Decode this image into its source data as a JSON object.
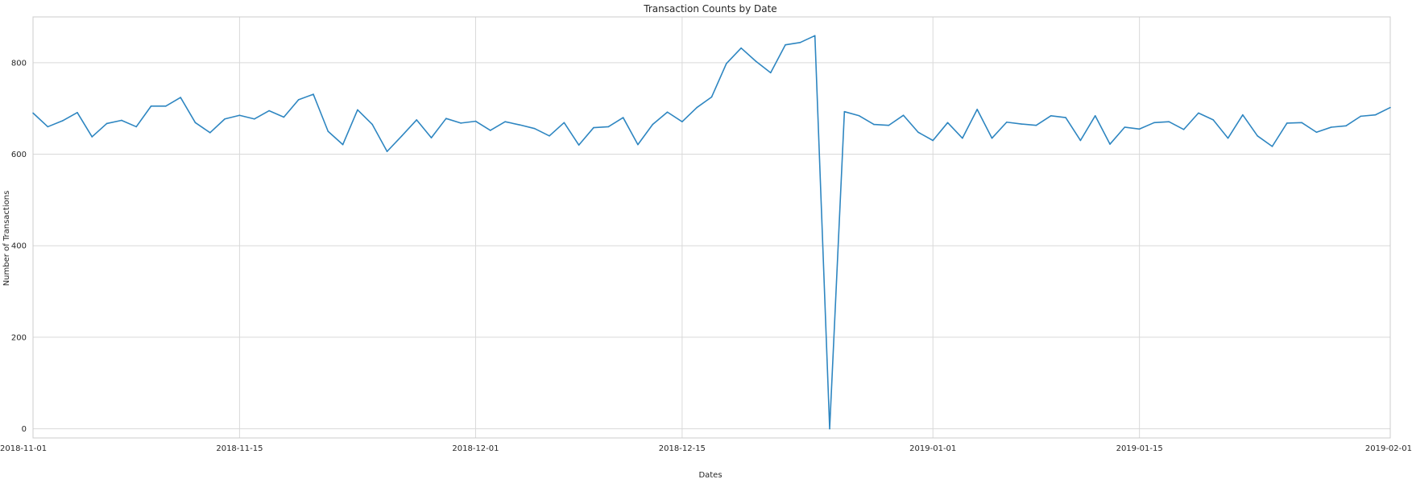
{
  "chart_data": {
    "type": "line",
    "title": "Transaction Counts by Date",
    "xlabel": "Dates",
    "ylabel": "Number of Transactions",
    "grid": true,
    "xlim": [
      "2018-11-01",
      "2019-02-01"
    ],
    "ylim": [
      -20,
      900
    ],
    "yticks": [
      0,
      200,
      400,
      600,
      800
    ],
    "xticks": [
      "2018-11-01",
      "2018-11-15",
      "2018-12-01",
      "2018-12-15",
      "2019-01-01",
      "2019-01-15",
      "2019-02-01"
    ],
    "colors": {
      "line": "#2e86c1",
      "grid": "#d9d9d9",
      "text": "#262626"
    },
    "series": [
      {
        "x": [
          "2018-11-01",
          "2018-11-02",
          "2018-11-03",
          "2018-11-04",
          "2018-11-05",
          "2018-11-06",
          "2018-11-07",
          "2018-11-08",
          "2018-11-09",
          "2018-11-10",
          "2018-11-11",
          "2018-11-12",
          "2018-11-13",
          "2018-11-14",
          "2018-11-15",
          "2018-11-16",
          "2018-11-17",
          "2018-11-18",
          "2018-11-19",
          "2018-11-20",
          "2018-11-21",
          "2018-11-22",
          "2018-11-23",
          "2018-11-24",
          "2018-11-25",
          "2018-11-26",
          "2018-11-27",
          "2018-11-28",
          "2018-11-29",
          "2018-11-30",
          "2018-12-01",
          "2018-12-02",
          "2018-12-03",
          "2018-12-04",
          "2018-12-05",
          "2018-12-06",
          "2018-12-07",
          "2018-12-08",
          "2018-12-09",
          "2018-12-10",
          "2018-12-11",
          "2018-12-12",
          "2018-12-13",
          "2018-12-14",
          "2018-12-15",
          "2018-12-16",
          "2018-12-17",
          "2018-12-18",
          "2018-12-19",
          "2018-12-20",
          "2018-12-21",
          "2018-12-22",
          "2018-12-23",
          "2018-12-24",
          "2018-12-25",
          "2018-12-26",
          "2018-12-27",
          "2018-12-28",
          "2018-12-29",
          "2018-12-30",
          "2018-12-31",
          "2019-01-01",
          "2019-01-02",
          "2019-01-03",
          "2019-01-04",
          "2019-01-05",
          "2019-01-06",
          "2019-01-07",
          "2019-01-08",
          "2019-01-09",
          "2019-01-10",
          "2019-01-11",
          "2019-01-12",
          "2019-01-13",
          "2019-01-14",
          "2019-01-15",
          "2019-01-16",
          "2019-01-17",
          "2019-01-18",
          "2019-01-19",
          "2019-01-20",
          "2019-01-21",
          "2019-01-22",
          "2019-01-23",
          "2019-01-24",
          "2019-01-25",
          "2019-01-26",
          "2019-01-27",
          "2019-01-28",
          "2019-01-29",
          "2019-01-30",
          "2019-01-31",
          "2019-02-01"
        ],
        "values": [
          690,
          660,
          673,
          691,
          638,
          667,
          674,
          660,
          705,
          705,
          724,
          669,
          647,
          677,
          685,
          677,
          695,
          681,
          719,
          731,
          650,
          621,
          697,
          665,
          606,
          640,
          675,
          636,
          678,
          668,
          672,
          652,
          671,
          664,
          656,
          640,
          669,
          620,
          658,
          660,
          680,
          621,
          665,
          692,
          671,
          702,
          725,
          798,
          832,
          803,
          778,
          839,
          844,
          859,
          0,
          693,
          684,
          665,
          663,
          685,
          648,
          630,
          669,
          635,
          698,
          635,
          670,
          666,
          663,
          684,
          680,
          630,
          684,
          622,
          659,
          655,
          669,
          671,
          654,
          690,
          675,
          635,
          686,
          640,
          617,
          668,
          669,
          648,
          659,
          662,
          683,
          686,
          702
        ]
      }
    ]
  }
}
